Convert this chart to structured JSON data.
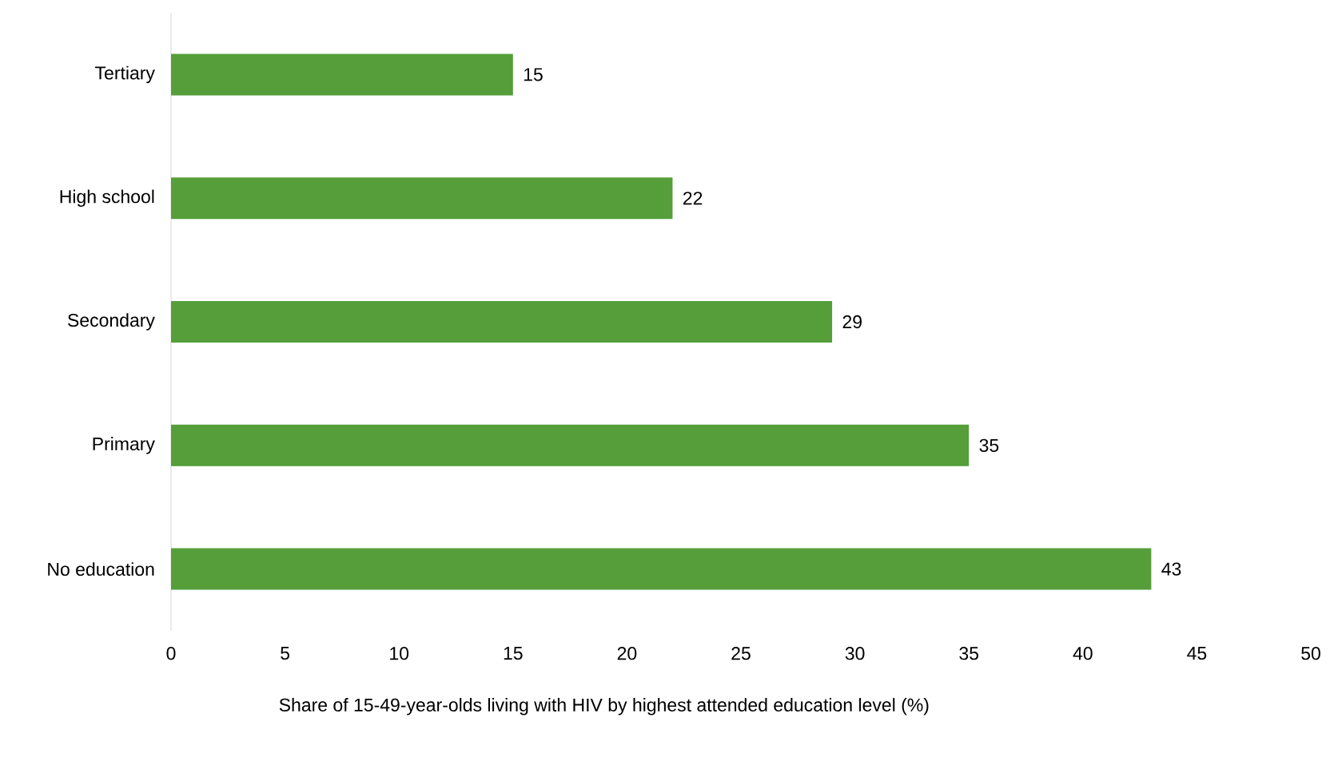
{
  "chart_data": {
    "type": "bar",
    "orientation": "horizontal",
    "xlabel": "Share of 15-49-year-olds living with HIV by highest attended education level (%)",
    "categories": [
      "Tertiary",
      "High school",
      "Secondary",
      "Primary",
      "No education"
    ],
    "values": [
      15,
      22,
      29,
      35,
      43
    ],
    "color": "#559e3a",
    "xlim": [
      0,
      50
    ],
    "xticks": [
      0,
      5,
      10,
      15,
      20,
      25,
      30,
      35,
      40,
      45,
      50
    ],
    "data_labels": true
  }
}
